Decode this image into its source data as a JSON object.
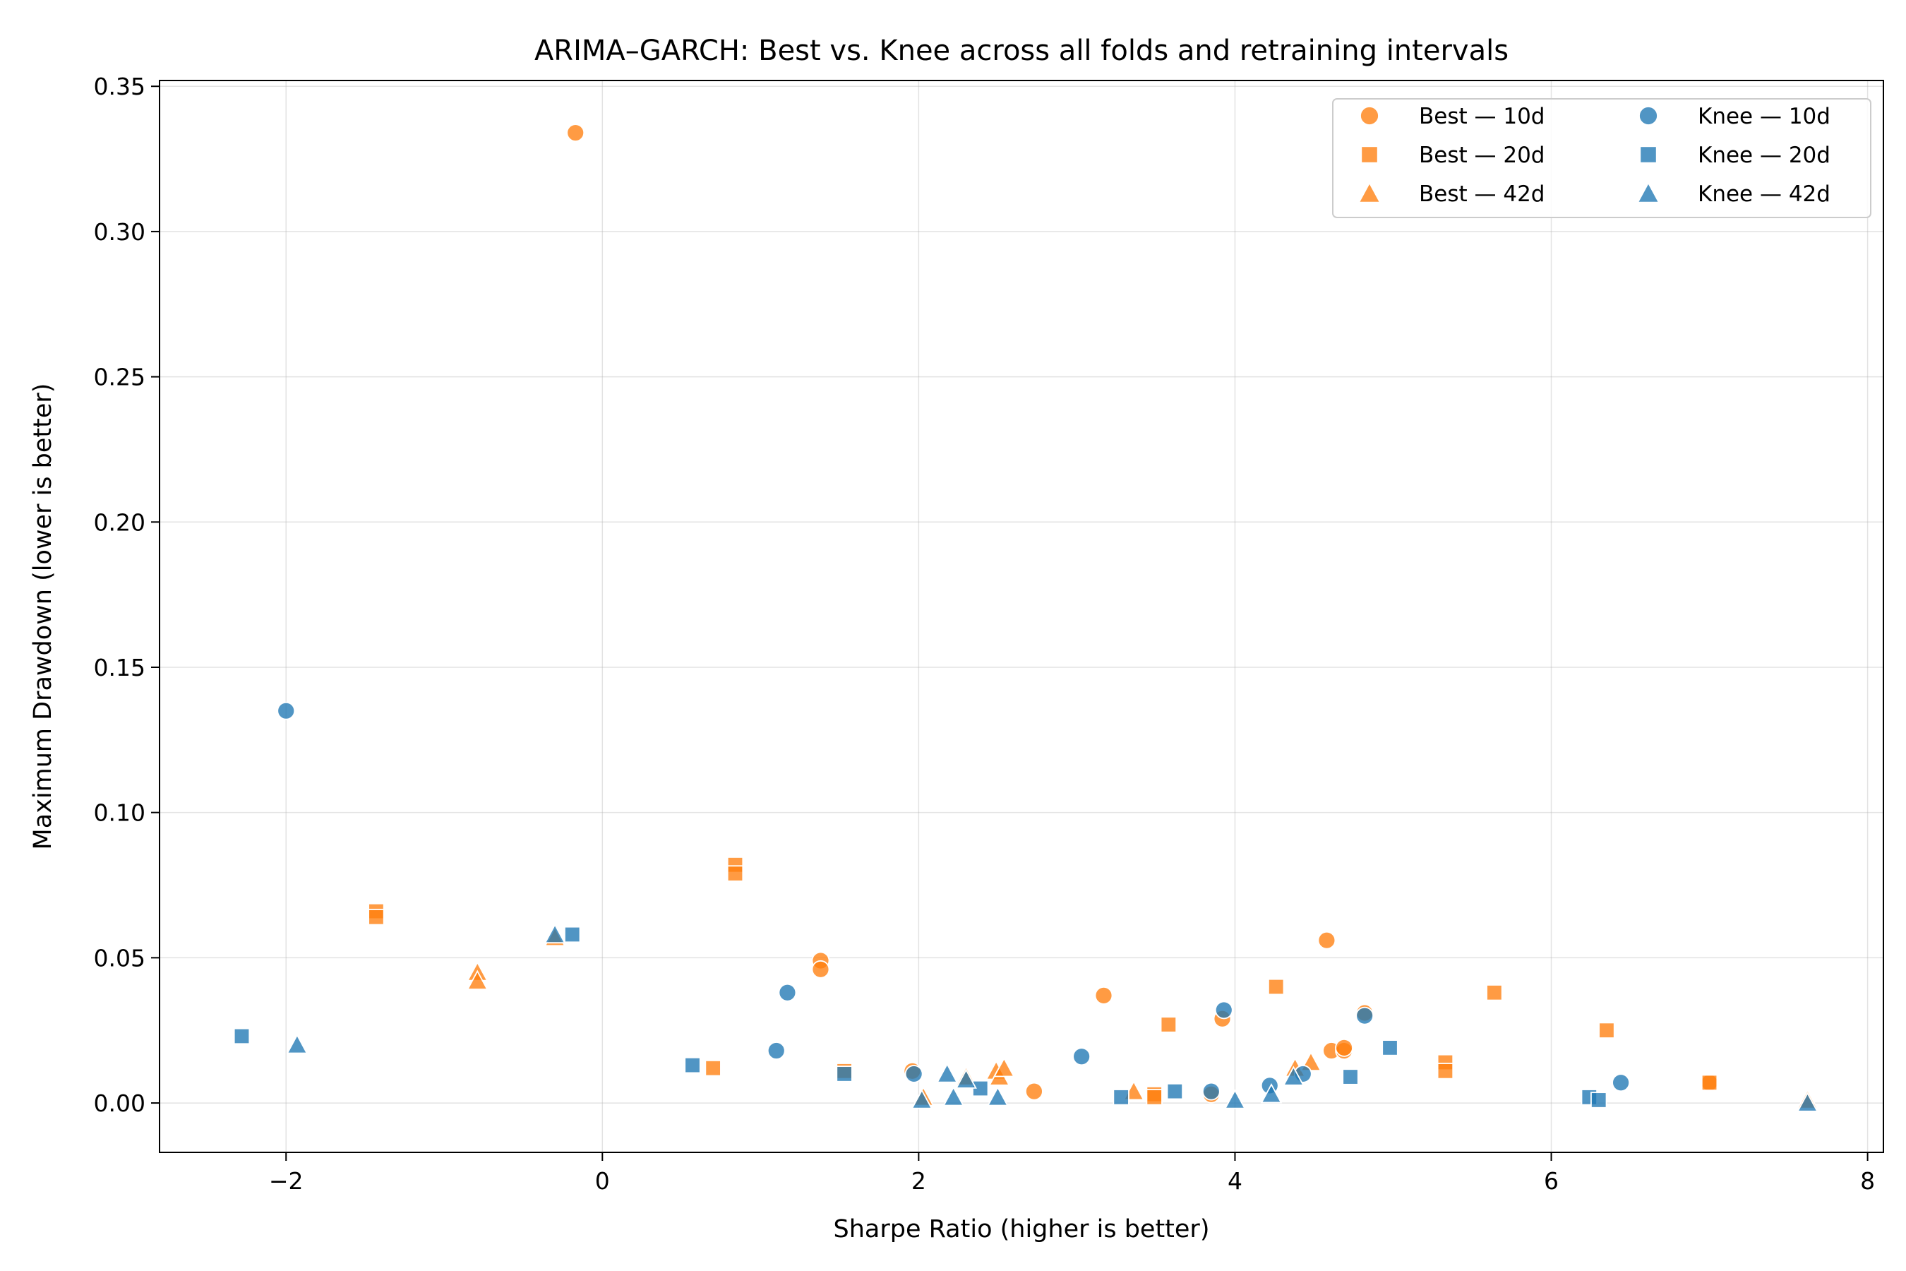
{
  "chart_data": {
    "type": "scatter",
    "title": "ARIMA–GARCH: Best vs. Knee across all folds and retraining intervals",
    "xlabel": "Sharpe Ratio (higher is better)",
    "ylabel": "Maximum Drawdown (lower is better)",
    "xlim": [
      -2.8,
      8.1
    ],
    "ylim": [
      -0.017,
      0.352
    ],
    "x_ticks": [
      -2,
      0,
      2,
      4,
      6,
      8
    ],
    "x_tick_labels": [
      "−2",
      "0",
      "2",
      "4",
      "6",
      "8"
    ],
    "y_ticks": [
      0.0,
      0.05,
      0.1,
      0.15,
      0.2,
      0.25,
      0.3,
      0.35
    ],
    "y_tick_labels": [
      "0.00",
      "0.05",
      "0.10",
      "0.15",
      "0.20",
      "0.25",
      "0.30",
      "0.35"
    ],
    "grid": true,
    "legend_position": "top-right",
    "colors": {
      "best": "#ff7f0e",
      "knee": "#1f77b4"
    },
    "series": [
      {
        "name": "Best — 10d",
        "group": "best",
        "marker": "circle",
        "points": [
          [
            -0.17,
            0.334
          ],
          [
            1.38,
            0.049
          ],
          [
            1.38,
            0.046
          ],
          [
            1.96,
            0.011
          ],
          [
            2.73,
            0.004
          ],
          [
            3.17,
            0.037
          ],
          [
            3.85,
            0.003
          ],
          [
            3.92,
            0.029
          ],
          [
            4.58,
            0.056
          ],
          [
            4.61,
            0.018
          ],
          [
            4.69,
            0.018
          ],
          [
            4.69,
            0.019
          ],
          [
            4.82,
            0.031
          ],
          [
            7.0,
            0.007
          ]
        ]
      },
      {
        "name": "Best — 20d",
        "group": "best",
        "marker": "square",
        "points": [
          [
            -1.43,
            0.066
          ],
          [
            -1.43,
            0.064
          ],
          [
            0.7,
            0.012
          ],
          [
            0.84,
            0.082
          ],
          [
            0.84,
            0.079
          ],
          [
            1.53,
            0.011
          ],
          [
            3.49,
            0.003
          ],
          [
            3.49,
            0.002
          ],
          [
            3.58,
            0.027
          ],
          [
            4.26,
            0.04
          ],
          [
            5.33,
            0.014
          ],
          [
            5.33,
            0.011
          ],
          [
            5.64,
            0.038
          ],
          [
            6.35,
            0.025
          ],
          [
            7.0,
            0.007
          ]
        ]
      },
      {
        "name": "Best — 42d",
        "group": "best",
        "marker": "triangle",
        "points": [
          [
            -0.79,
            0.045
          ],
          [
            -0.79,
            0.042
          ],
          [
            -0.3,
            0.057
          ],
          [
            2.03,
            0.002
          ],
          [
            2.3,
            0.009
          ],
          [
            2.49,
            0.011
          ],
          [
            2.51,
            0.009
          ],
          [
            2.54,
            0.012
          ],
          [
            3.36,
            0.004
          ],
          [
            4.38,
            0.012
          ],
          [
            4.48,
            0.014
          ],
          [
            7.62,
            0.001
          ]
        ]
      },
      {
        "name": "Knee — 10d",
        "group": "knee",
        "marker": "circle",
        "points": [
          [
            -2.0,
            0.135
          ],
          [
            1.1,
            0.018
          ],
          [
            1.17,
            0.038
          ],
          [
            1.97,
            0.01
          ],
          [
            3.03,
            0.016
          ],
          [
            3.85,
            0.004
          ],
          [
            3.93,
            0.032
          ],
          [
            4.22,
            0.006
          ],
          [
            4.43,
            0.01
          ],
          [
            4.82,
            0.03
          ],
          [
            6.44,
            0.007
          ]
        ]
      },
      {
        "name": "Knee — 20d",
        "group": "knee",
        "marker": "square",
        "points": [
          [
            -2.28,
            0.023
          ],
          [
            -0.19,
            0.058
          ],
          [
            0.57,
            0.013
          ],
          [
            1.53,
            0.01
          ],
          [
            2.39,
            0.005
          ],
          [
            3.28,
            0.002
          ],
          [
            3.62,
            0.004
          ],
          [
            4.73,
            0.009
          ],
          [
            4.98,
            0.019
          ],
          [
            6.24,
            0.002
          ],
          [
            6.3,
            0.001
          ]
        ]
      },
      {
        "name": "Knee — 42d",
        "group": "knee",
        "marker": "triangle",
        "points": [
          [
            -1.93,
            0.02
          ],
          [
            -0.3,
            0.058
          ],
          [
            2.02,
            0.001
          ],
          [
            2.18,
            0.01
          ],
          [
            2.22,
            0.002
          ],
          [
            2.3,
            0.008
          ],
          [
            2.5,
            0.002
          ],
          [
            4.0,
            0.001
          ],
          [
            4.23,
            0.003
          ],
          [
            4.37,
            0.009
          ],
          [
            7.62,
            0.0
          ]
        ]
      }
    ]
  }
}
